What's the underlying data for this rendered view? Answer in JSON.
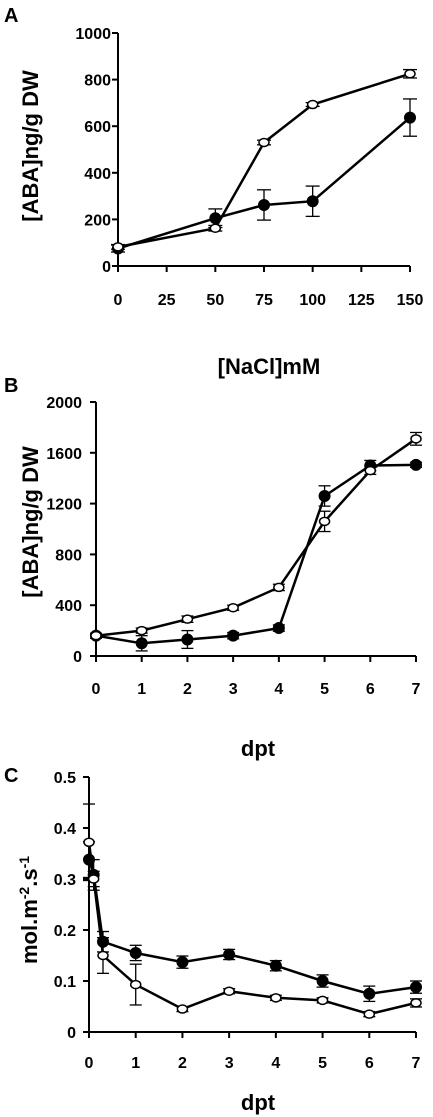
{
  "chart_data": [
    {
      "panel": "A",
      "type": "line",
      "xlabel": "[NaCl]mM",
      "ylabel": "[ABA]ng/g DW",
      "xlim": [
        0,
        150
      ],
      "ylim": [
        0,
        1000
      ],
      "xticks": [
        0,
        25,
        50,
        75,
        100,
        125,
        150
      ],
      "yticks": [
        0,
        200,
        400,
        600,
        800,
        1000
      ],
      "series": [
        {
          "marker": "filled-circle",
          "x": [
            0,
            50,
            75,
            100,
            150
          ],
          "values": [
            75,
            205,
            262,
            278,
            637
          ],
          "err": [
            15,
            40,
            65,
            65,
            80
          ]
        },
        {
          "marker": "open-circle",
          "x": [
            0,
            50,
            75,
            100,
            150
          ],
          "values": [
            82,
            162,
            530,
            693,
            825
          ],
          "err": [
            10,
            12,
            10,
            8,
            18
          ]
        }
      ]
    },
    {
      "panel": "B",
      "type": "line",
      "xlabel": "dpt",
      "ylabel": "[ABA]ng/g DW",
      "xlim": [
        0,
        7
      ],
      "ylim": [
        0,
        2000
      ],
      "xticks": [
        0,
        1,
        2,
        3,
        4,
        5,
        6,
        7
      ],
      "yticks": [
        0,
        400,
        800,
        1200,
        1600,
        2000
      ],
      "series": [
        {
          "marker": "filled-circle",
          "x": [
            0,
            1,
            2,
            3,
            4,
            5,
            6,
            7
          ],
          "values": [
            160,
            100,
            130,
            160,
            220,
            1260,
            1500,
            1505
          ],
          "err": [
            20,
            60,
            70,
            25,
            25,
            80,
            40,
            20
          ]
        },
        {
          "marker": "open-circle",
          "x": [
            0,
            1,
            2,
            3,
            4,
            5,
            6,
            7
          ],
          "values": [
            160,
            200,
            290,
            380,
            540,
            1060,
            1460,
            1710
          ],
          "err": [
            20,
            20,
            25,
            20,
            25,
            80,
            30,
            50
          ]
        }
      ]
    },
    {
      "panel": "C",
      "type": "line",
      "xlabel": "dpt",
      "ylabel_main": "mol.m",
      "ylabel_sup1": "-2",
      "ylabel_mid": ".s",
      "ylabel_sup2": "-1",
      "xlim": [
        0,
        7
      ],
      "ylim": [
        0,
        0.5
      ],
      "xticks": [
        0,
        1,
        2,
        3,
        4,
        5,
        6,
        7
      ],
      "yticks": [
        0,
        0.1,
        0.2,
        0.3,
        0.4,
        0.5
      ],
      "ytick_labels": [
        "0",
        "0.1",
        "0.2",
        "0.3",
        "0.4",
        "0.5"
      ],
      "series": [
        {
          "marker": "filled-circle",
          "x": [
            0,
            0.1,
            0.3,
            1,
            2,
            3,
            4,
            5,
            6,
            7
          ],
          "values": [
            0.338,
            0.308,
            0.177,
            0.155,
            0.137,
            0.152,
            0.13,
            0.1,
            0.075,
            0.088
          ],
          "err": [
            0.035,
            0.03,
            0.02,
            0.015,
            0.012,
            0.01,
            0.01,
            0.012,
            0.015,
            0.012
          ]
        },
        {
          "marker": "open-circle",
          "x": [
            0,
            0.1,
            0.3,
            1,
            2,
            3,
            4,
            5,
            6,
            7
          ],
          "values": [
            0.372,
            0.3,
            0.15,
            0.093,
            0.045,
            0.08,
            0.067,
            0.062,
            0.035,
            0.057
          ],
          "err": [
            0.075,
            0.015,
            0.035,
            0.04,
            0.005,
            0.005,
            0.005,
            0.005,
            0.005,
            0.008
          ]
        }
      ]
    }
  ]
}
